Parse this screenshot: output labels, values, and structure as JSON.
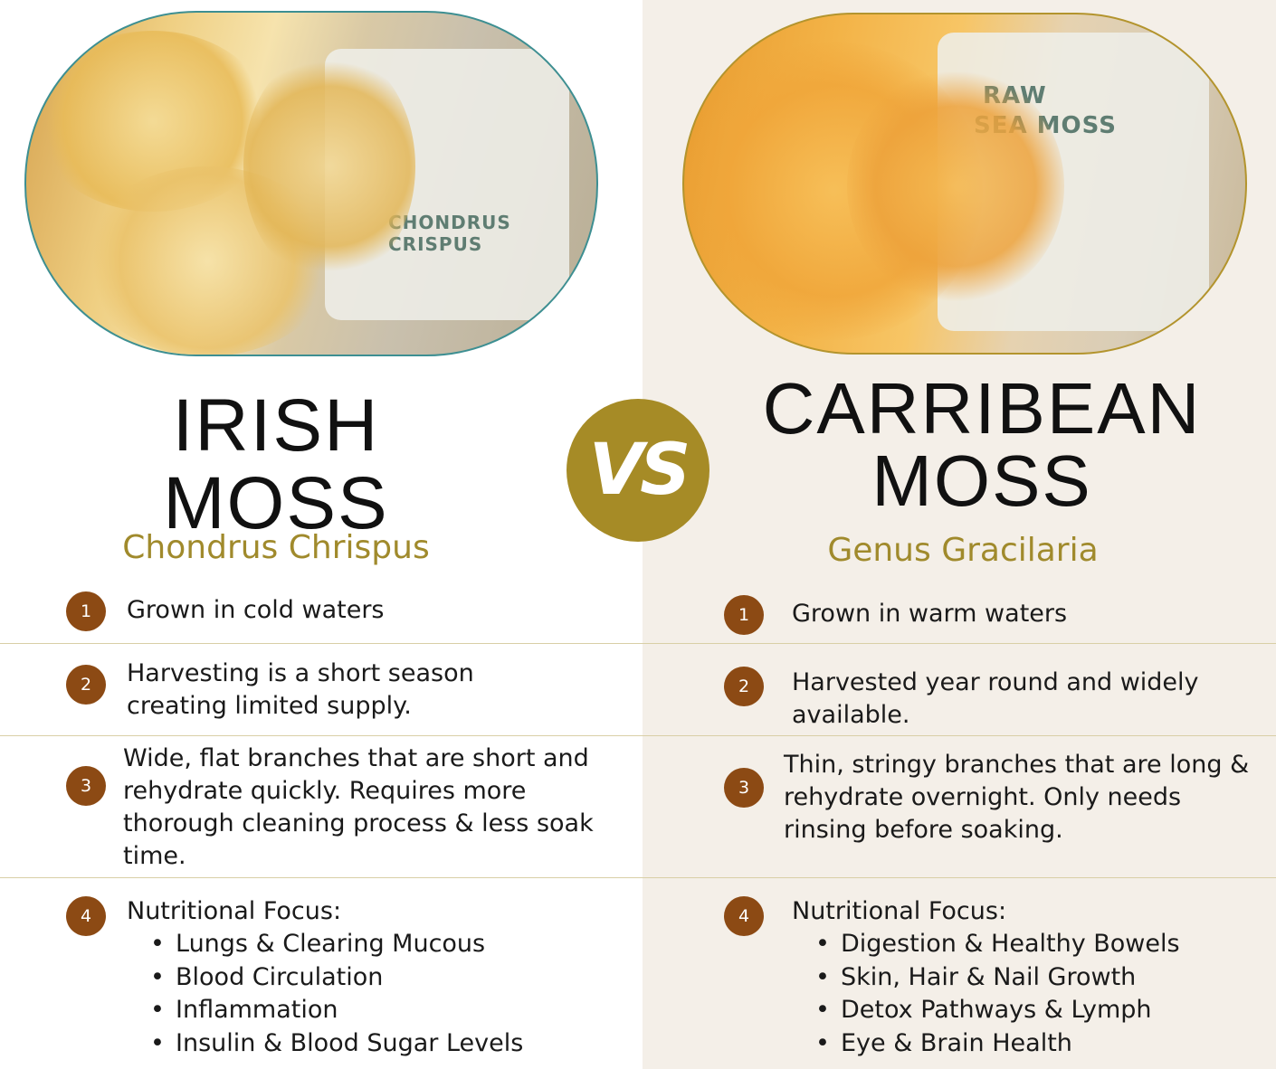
{
  "colors": {
    "accent_gold": "#a68b26",
    "number_brown": "#8c4a14",
    "right_panel": "#f4efe8"
  },
  "vs_label": "VS",
  "left": {
    "title_line1": "IRISH",
    "title_line2": "MOSS",
    "subtitle": "Chondrus Chrispus",
    "package_text": "CHONDRUS CRISPUS",
    "items": [
      {
        "num": "1",
        "text": "Grown in cold waters"
      },
      {
        "num": "2",
        "text": "Harvesting is a short season creating limited supply."
      },
      {
        "num": "3",
        "text": "Wide, flat branches that are short and rehydrate quickly. Requires more thorough cleaning process & less soak time."
      },
      {
        "num": "4",
        "text": "Nutritional Focus:",
        "bullets": [
          "Lungs & Clearing Mucous",
          "Blood Circulation",
          "Inflammation",
          "Insulin & Blood Sugar Levels"
        ]
      }
    ]
  },
  "right": {
    "title_line1": "CARRIBEAN",
    "title_line2": "MOSS",
    "subtitle": "Genus Gracilaria",
    "package_text_1": "RAW",
    "package_text_2": "SEA MOSS",
    "items": [
      {
        "num": "1",
        "text": "Grown in warm waters"
      },
      {
        "num": "2",
        "text": "Harvested year round and widely available."
      },
      {
        "num": "3",
        "text": "Thin, stringy branches that are long & rehydrate overnight. Only needs rinsing before soaking."
      },
      {
        "num": "4",
        "text": "Nutritional Focus:",
        "bullets": [
          "Digestion & Healthy Bowels",
          "Skin, Hair & Nail Growth",
          "Detox Pathways & Lymph",
          "Eye & Brain Health"
        ]
      }
    ]
  }
}
